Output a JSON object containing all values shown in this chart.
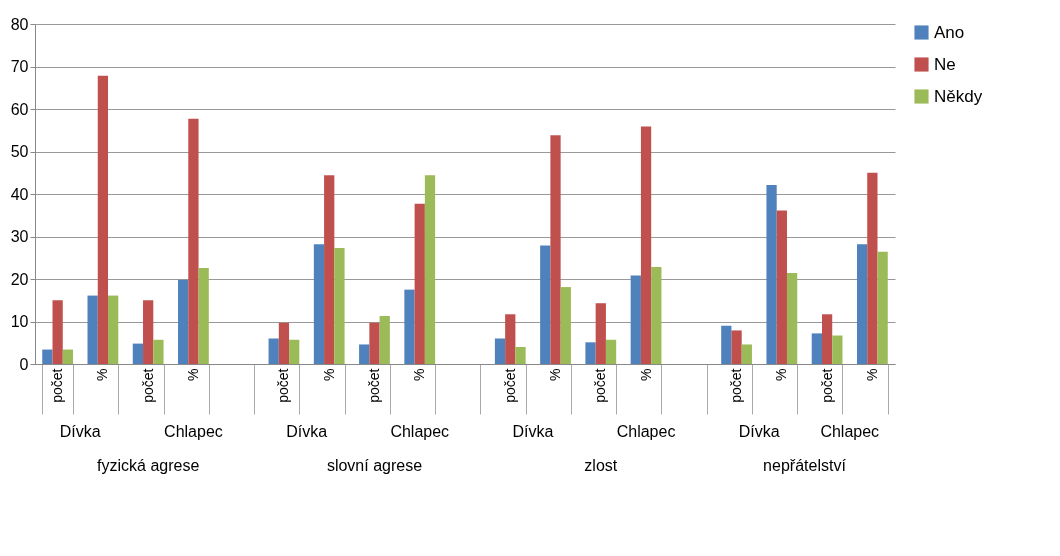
{
  "chart_data": {
    "type": "bar",
    "categories": [
      "počet",
      "%",
      "počet",
      "%",
      null,
      "počet",
      "%",
      "počet",
      "%",
      null,
      "počet",
      "%",
      "počet",
      "%",
      null,
      "počet",
      "%",
      "počet",
      "%"
    ],
    "series": [
      {
        "name": "Ano",
        "color": "#4f81bd",
        "values": [
          3.4,
          16.1,
          4.8,
          19.8,
          null,
          6.0,
          28.2,
          4.6,
          17.5,
          null,
          6.0,
          27.9,
          5.1,
          20.8,
          null,
          9.0,
          42.1,
          7.2,
          28.2
        ]
      },
      {
        "name": "Ne",
        "color": "#c0504d",
        "values": [
          15,
          67.8,
          15,
          57.7,
          null,
          9.7,
          44.4,
          9.7,
          37.7,
          null,
          11.7,
          53.8,
          14.3,
          55.9,
          null,
          7.9,
          36.1,
          11.7,
          45.0
        ]
      },
      {
        "name": "Někdy",
        "color": "#9bbb59",
        "values": [
          3.4,
          16.1,
          5.7,
          22.6,
          null,
          5.7,
          27.3,
          11.3,
          44.4,
          null,
          4.0,
          18.1,
          5.7,
          22.8,
          null,
          4.6,
          21.4,
          6.7,
          26.4
        ]
      }
    ],
    "annotations": [
      "Dívka",
      "Chlapec",
      "Dívka",
      "Chlapec",
      "Dívka",
      "Chlapec",
      "Dívka",
      "Chlapec",
      "fyzická agrese",
      "slovní agrese",
      "zlost",
      "nepřátelství"
    ],
    "ylim": [
      0,
      80
    ],
    "yticks": [
      0,
      10,
      20,
      30,
      40,
      50,
      60,
      70,
      80
    ],
    "grid": "y",
    "legend": "right"
  }
}
